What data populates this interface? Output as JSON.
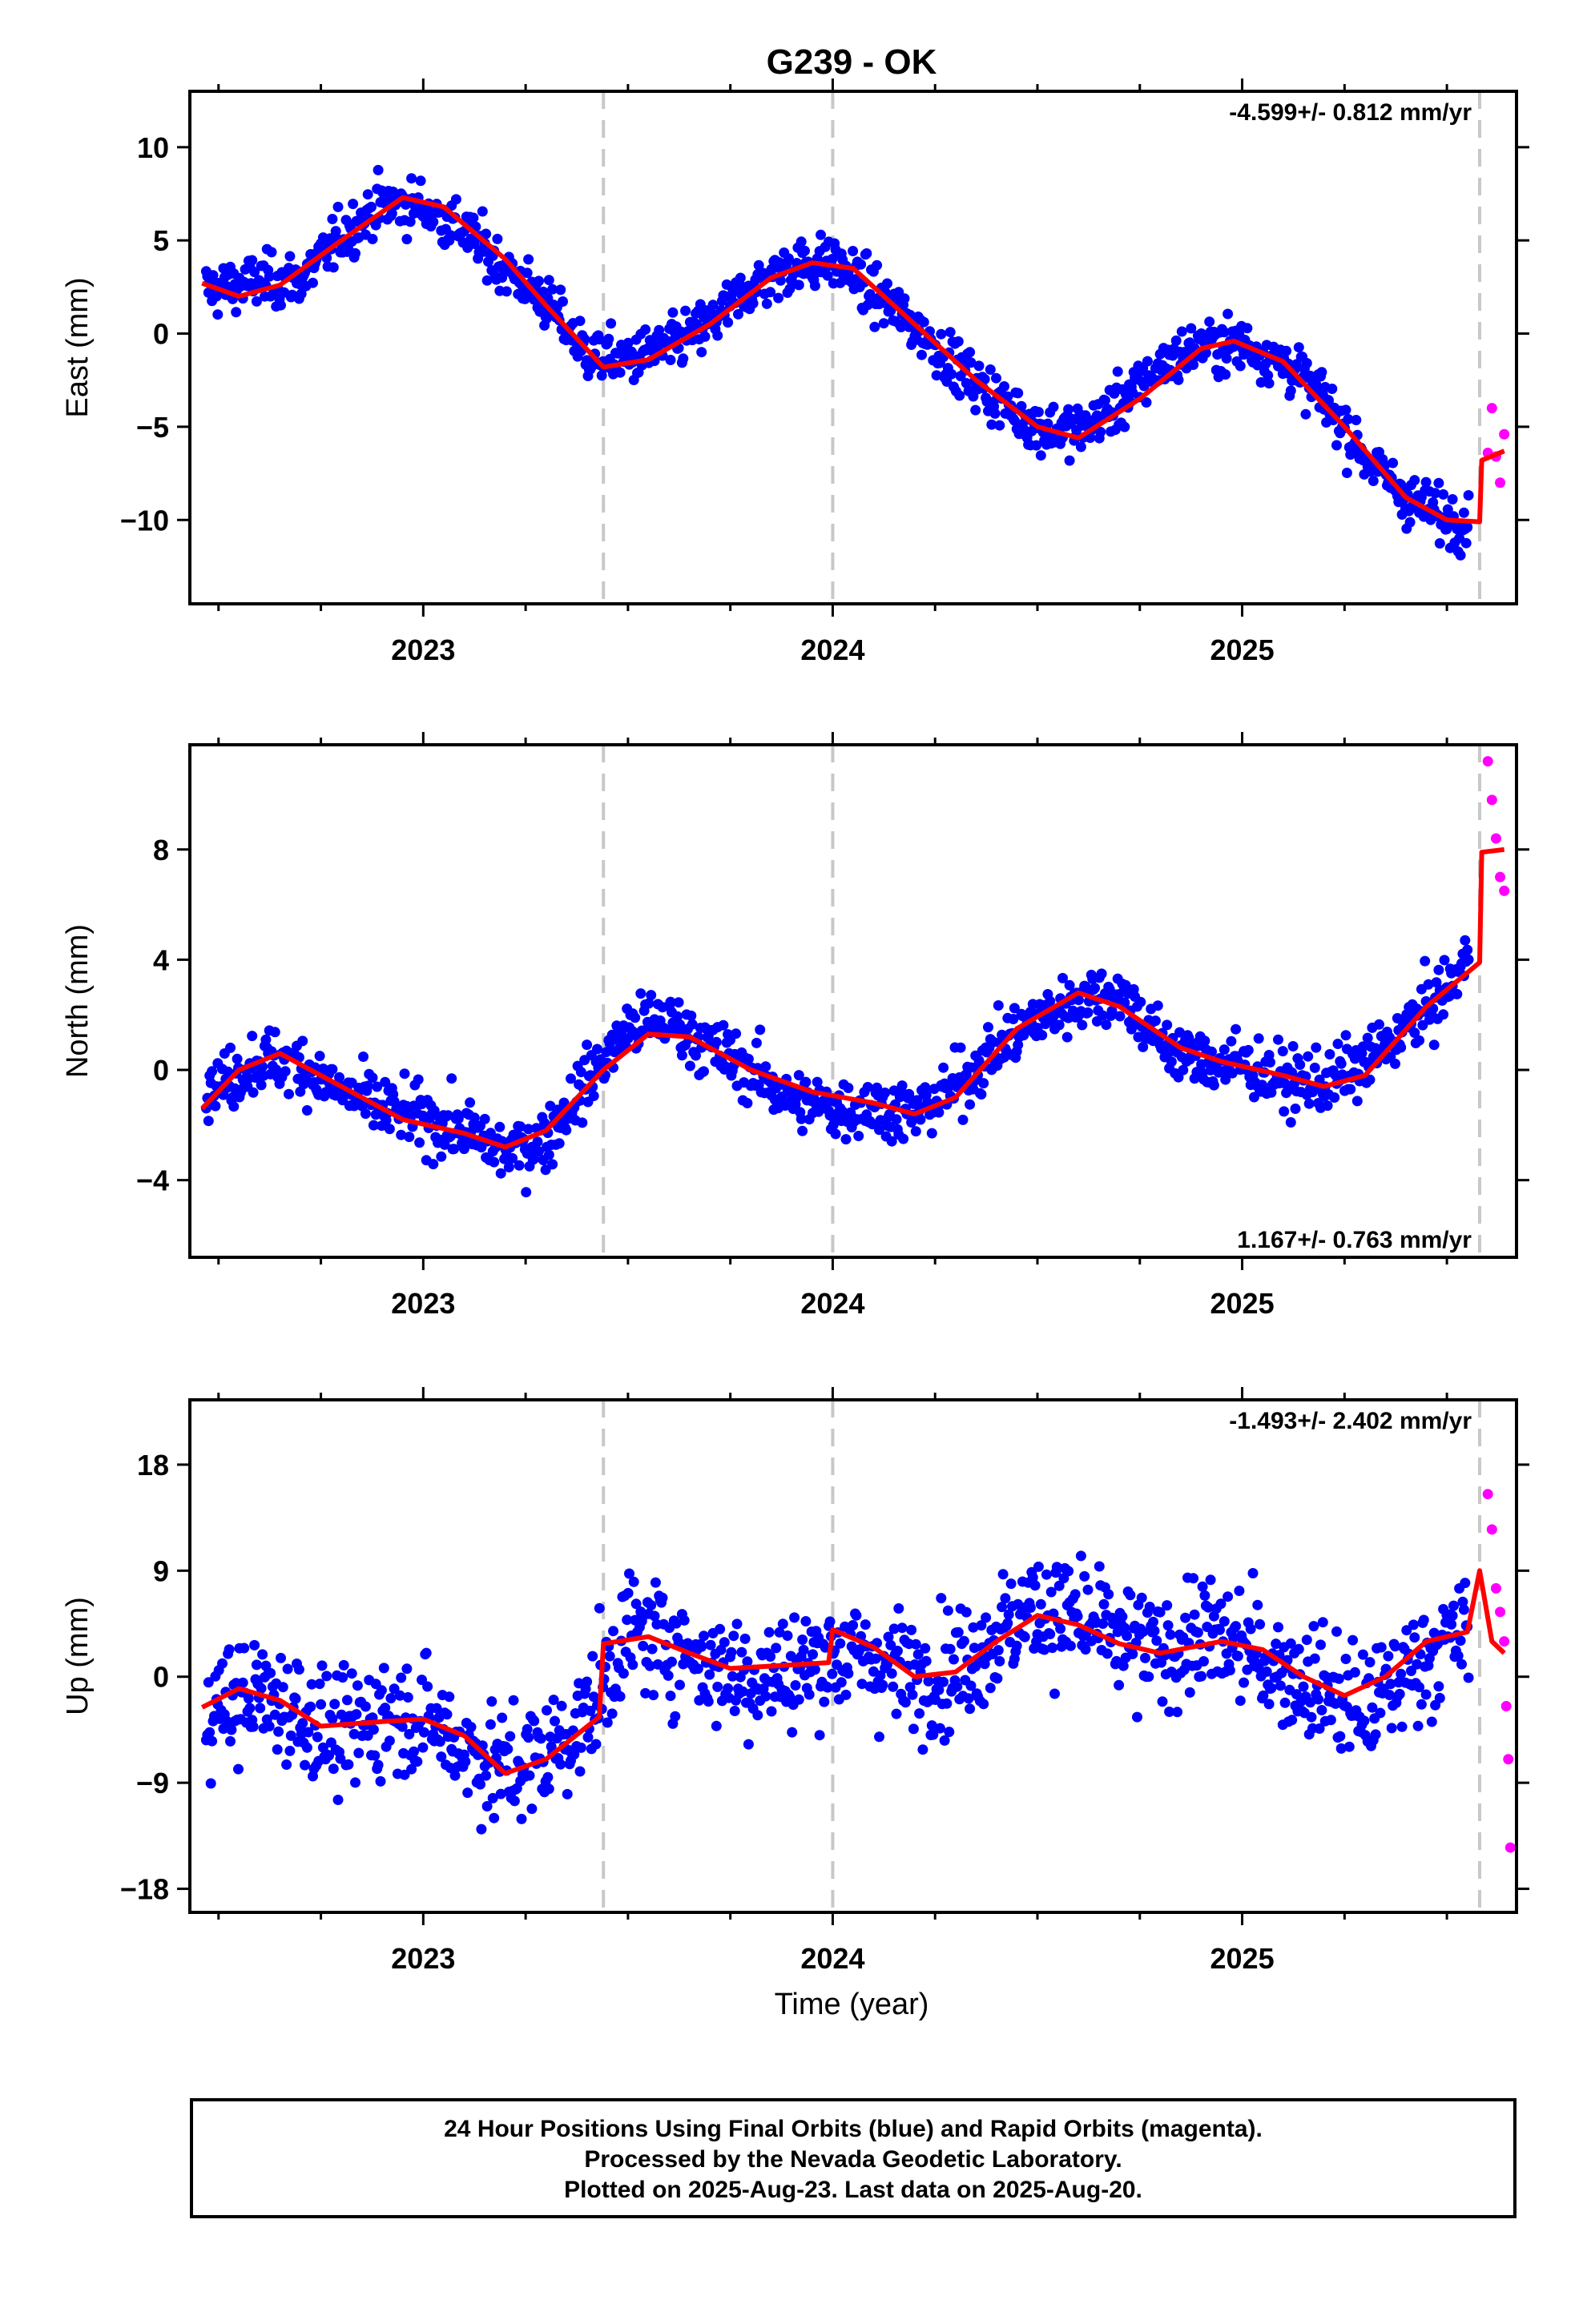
{
  "title": "G239 - OK",
  "time_label": "Time (year)",
  "caption": {
    "line1": "24 Hour Positions Using Final Orbits (blue) and Rapid Orbits (magenta).",
    "line2": "Processed by the Nevada Geodetic Laboratory.",
    "line3": "Plotted on 2025-Aug-23. Last data on 2025-Aug-20."
  },
  "colors": {
    "final": "#0000ff",
    "rapid": "#ff00ff",
    "model": "#ff0000",
    "steps": "#c8c8c8"
  },
  "chart_data": [
    {
      "type": "scatter",
      "ylabel": "East (mm)",
      "rate": "-4.599+/- 0.812 mm/yr",
      "rate_pos": "top-right",
      "xlim": [
        2022.43,
        2025.67
      ],
      "ylim": [
        -14.5,
        13
      ],
      "xticks": [
        2023,
        2024,
        2025
      ],
      "yticks": [
        -10,
        -5,
        0,
        5,
        10
      ],
      "yticklabels": [
        "−10",
        "−5",
        "0",
        "5",
        "10"
      ],
      "steps": [
        2023.44,
        2024.0,
        2025.58
      ],
      "model": [
        [
          2022.46,
          2.7
        ],
        [
          2022.55,
          2.0
        ],
        [
          2022.65,
          2.6
        ],
        [
          2022.8,
          5.0
        ],
        [
          2022.95,
          7.3
        ],
        [
          2023.05,
          6.8
        ],
        [
          2023.2,
          4.0
        ],
        [
          2023.3,
          1.5
        ],
        [
          2023.44,
          -1.8
        ],
        [
          2023.55,
          -1.4
        ],
        [
          2023.7,
          0.5
        ],
        [
          2023.85,
          3.0
        ],
        [
          2023.95,
          3.8
        ],
        [
          2024.05,
          3.5
        ],
        [
          2024.2,
          0.5
        ],
        [
          2024.35,
          -2.5
        ],
        [
          2024.5,
          -5.0
        ],
        [
          2024.6,
          -5.6
        ],
        [
          2024.75,
          -3.5
        ],
        [
          2024.9,
          -0.8
        ],
        [
          2024.98,
          -0.4
        ],
        [
          2025.1,
          -1.5
        ],
        [
          2025.25,
          -5.0
        ],
        [
          2025.4,
          -8.8
        ],
        [
          2025.5,
          -10.0
        ],
        [
          2025.58,
          -10.1
        ],
        [
          2025.585,
          -6.8
        ],
        [
          2025.64,
          -6.3
        ]
      ],
      "series": [
        {
          "name": "final",
          "points": [
            [
              2022.5,
              2.4
            ],
            [
              2022.6,
              2.8
            ],
            [
              2022.7,
              2.9
            ],
            [
              2022.8,
              5.2
            ],
            [
              2022.9,
              7.0
            ],
            [
              2023.0,
              6.8
            ],
            [
              2023.1,
              5.5
            ],
            [
              2023.2,
              3.5
            ],
            [
              2023.3,
              1.7
            ],
            [
              2023.4,
              -1.1
            ],
            [
              2023.5,
              -1.4
            ],
            [
              2023.6,
              -0.7
            ],
            [
              2023.7,
              0.5
            ],
            [
              2023.8,
              2.5
            ],
            [
              2023.9,
              3.6
            ],
            [
              2024.0,
              3.9
            ],
            [
              2024.1,
              2.2
            ],
            [
              2024.2,
              0.4
            ],
            [
              2024.3,
              -1.7
            ],
            [
              2024.4,
              -3.5
            ],
            [
              2024.5,
              -5.0
            ],
            [
              2024.6,
              -5.2
            ],
            [
              2024.7,
              -3.8
            ],
            [
              2024.8,
              -1.8
            ],
            [
              2024.9,
              -0.6
            ],
            [
              2025.0,
              -0.6
            ],
            [
              2025.1,
              -1.5
            ],
            [
              2025.2,
              -3.5
            ],
            [
              2025.3,
              -6.6
            ],
            [
              2025.4,
              -8.8
            ],
            [
              2025.5,
              -9.9
            ],
            [
              2025.55,
              -10.0
            ]
          ]
        },
        {
          "name": "rapid",
          "points": [
            [
              2025.6,
              -6.4
            ],
            [
              2025.61,
              -4.0
            ],
            [
              2025.62,
              -6.6
            ],
            [
              2025.63,
              -8.0
            ],
            [
              2025.64,
              -5.4
            ]
          ]
        }
      ]
    },
    {
      "type": "scatter",
      "ylabel": "North (mm)",
      "rate": "1.167+/- 0.763 mm/yr",
      "rate_pos": "bottom-right",
      "xlim": [
        2022.43,
        2025.67
      ],
      "ylim": [
        -6.8,
        11.8
      ],
      "xticks": [
        2023,
        2024,
        2025
      ],
      "yticks": [
        -4,
        0,
        4,
        8
      ],
      "yticklabels": [
        "−4",
        "0",
        "4",
        "8"
      ],
      "steps": [
        2023.44,
        2024.0,
        2025.58
      ],
      "model": [
        [
          2022.46,
          -1.4
        ],
        [
          2022.55,
          0.0
        ],
        [
          2022.65,
          0.6
        ],
        [
          2022.8,
          -0.6
        ],
        [
          2022.95,
          -1.8
        ],
        [
          2023.1,
          -2.3
        ],
        [
          2023.2,
          -2.8
        ],
        [
          2023.3,
          -2.2
        ],
        [
          2023.44,
          0.0
        ],
        [
          2023.55,
          1.3
        ],
        [
          2023.65,
          1.2
        ],
        [
          2023.8,
          0.0
        ],
        [
          2023.95,
          -0.8
        ],
        [
          2024.1,
          -1.2
        ],
        [
          2024.2,
          -1.6
        ],
        [
          2024.3,
          -1.0
        ],
        [
          2024.45,
          1.5
        ],
        [
          2024.6,
          2.8
        ],
        [
          2024.7,
          2.3
        ],
        [
          2024.85,
          0.8
        ],
        [
          2024.95,
          0.3
        ],
        [
          2025.1,
          -0.2
        ],
        [
          2025.2,
          -0.6
        ],
        [
          2025.3,
          -0.2
        ],
        [
          2025.45,
          2.3
        ],
        [
          2025.58,
          3.9
        ],
        [
          2025.585,
          7.9
        ],
        [
          2025.64,
          8.0
        ]
      ],
      "series": [
        {
          "name": "final",
          "points": [
            [
              2022.5,
              -0.6
            ],
            [
              2022.6,
              0.4
            ],
            [
              2022.7,
              0.2
            ],
            [
              2022.8,
              -0.8
            ],
            [
              2022.9,
              -1.4
            ],
            [
              2023.0,
              -1.8
            ],
            [
              2023.1,
              -2.2
            ],
            [
              2023.2,
              -3.0
            ],
            [
              2023.3,
              -2.5
            ],
            [
              2023.4,
              -0.4
            ],
            [
              2023.5,
              1.5
            ],
            [
              2023.6,
              1.8
            ],
            [
              2023.7,
              0.8
            ],
            [
              2023.8,
              0.0
            ],
            [
              2023.9,
              -1.1
            ],
            [
              2024.0,
              -1.4
            ],
            [
              2024.1,
              -1.3
            ],
            [
              2024.2,
              -1.6
            ],
            [
              2024.3,
              -0.6
            ],
            [
              2024.4,
              0.8
            ],
            [
              2024.5,
              1.8
            ],
            [
              2024.6,
              2.6
            ],
            [
              2024.7,
              2.8
            ],
            [
              2024.8,
              1.0
            ],
            [
              2024.9,
              0.3
            ],
            [
              2025.0,
              0.2
            ],
            [
              2025.1,
              -0.4
            ],
            [
              2025.2,
              -0.5
            ],
            [
              2025.3,
              0.2
            ],
            [
              2025.4,
              1.5
            ],
            [
              2025.5,
              2.9
            ],
            [
              2025.55,
              4.0
            ]
          ]
        },
        {
          "name": "rapid",
          "points": [
            [
              2025.6,
              11.2
            ],
            [
              2025.61,
              9.8
            ],
            [
              2025.62,
              8.4
            ],
            [
              2025.63,
              7.0
            ],
            [
              2025.64,
              6.5
            ]
          ]
        }
      ]
    },
    {
      "type": "scatter",
      "ylabel": "Up (mm)",
      "rate": "-1.493+/- 2.402 mm/yr",
      "rate_pos": "top-right",
      "xlim": [
        2022.43,
        2025.67
      ],
      "ylim": [
        -20,
        23.5
      ],
      "xticks": [
        2023,
        2024,
        2025
      ],
      "yticks": [
        -18,
        -9,
        0,
        9,
        18
      ],
      "yticklabels": [
        "−18",
        "−9",
        "0",
        "9",
        "18"
      ],
      "steps": [
        2023.44,
        2024.0,
        2025.58
      ],
      "model": [
        [
          2022.46,
          -2.6
        ],
        [
          2022.55,
          -1.0
        ],
        [
          2022.65,
          -2.0
        ],
        [
          2022.75,
          -4.2
        ],
        [
          2022.9,
          -3.8
        ],
        [
          2023.0,
          -3.6
        ],
        [
          2023.1,
          -5.0
        ],
        [
          2023.2,
          -8.2
        ],
        [
          2023.3,
          -7.0
        ],
        [
          2023.43,
          -3.4
        ],
        [
          2023.44,
          2.8
        ],
        [
          2023.55,
          3.4
        ],
        [
          2023.65,
          2.0
        ],
        [
          2023.75,
          0.7
        ],
        [
          2023.9,
          1.0
        ],
        [
          2023.99,
          1.2
        ],
        [
          2024.0,
          4.0
        ],
        [
          2024.1,
          2.5
        ],
        [
          2024.2,
          0.0
        ],
        [
          2024.3,
          0.4
        ],
        [
          2024.4,
          3.0
        ],
        [
          2024.5,
          5.2
        ],
        [
          2024.6,
          4.4
        ],
        [
          2024.7,
          2.8
        ],
        [
          2024.8,
          2.0
        ],
        [
          2024.95,
          3.0
        ],
        [
          2025.05,
          2.3
        ],
        [
          2025.15,
          0.0
        ],
        [
          2025.25,
          -1.6
        ],
        [
          2025.35,
          0.0
        ],
        [
          2025.45,
          3.0
        ],
        [
          2025.55,
          3.8
        ],
        [
          2025.58,
          9.0
        ],
        [
          2025.61,
          3.0
        ],
        [
          2025.64,
          2.0
        ]
      ],
      "series": [
        {
          "name": "final",
          "points": [
            [
              2022.5,
              -2.5
            ],
            [
              2022.6,
              -1.5
            ],
            [
              2022.7,
              -3.0
            ],
            [
              2022.8,
              -5.5
            ],
            [
              2022.9,
              -3.0
            ],
            [
              2023.0,
              -3.4
            ],
            [
              2023.1,
              -6.0
            ],
            [
              2023.2,
              -8.0
            ],
            [
              2023.3,
              -6.5
            ],
            [
              2023.4,
              -3.5
            ],
            [
              2023.5,
              4.0
            ],
            [
              2023.6,
              3.0
            ],
            [
              2023.7,
              1.0
            ],
            [
              2023.8,
              0.0
            ],
            [
              2023.9,
              0.5
            ],
            [
              2024.0,
              2.0
            ],
            [
              2024.1,
              1.5
            ],
            [
              2024.2,
              0.0
            ],
            [
              2024.3,
              0.7
            ],
            [
              2024.4,
              3.5
            ],
            [
              2024.5,
              6.0
            ],
            [
              2024.6,
              5.0
            ],
            [
              2024.7,
              3.0
            ],
            [
              2024.8,
              2.0
            ],
            [
              2024.9,
              3.5
            ],
            [
              2025.0,
              2.5
            ],
            [
              2025.1,
              0.5
            ],
            [
              2025.2,
              -1.0
            ],
            [
              2025.3,
              -3.0
            ],
            [
              2025.4,
              0.5
            ],
            [
              2025.5,
              3.0
            ],
            [
              2025.55,
              4.0
            ]
          ]
        },
        {
          "name": "rapid",
          "points": [
            [
              2025.6,
              15.5
            ],
            [
              2025.61,
              12.5
            ],
            [
              2025.62,
              7.5
            ],
            [
              2025.63,
              5.5
            ],
            [
              2025.64,
              3.0
            ],
            [
              2025.645,
              -2.5
            ],
            [
              2025.65,
              -7.0
            ],
            [
              2025.655,
              -14.5
            ]
          ]
        }
      ]
    }
  ]
}
